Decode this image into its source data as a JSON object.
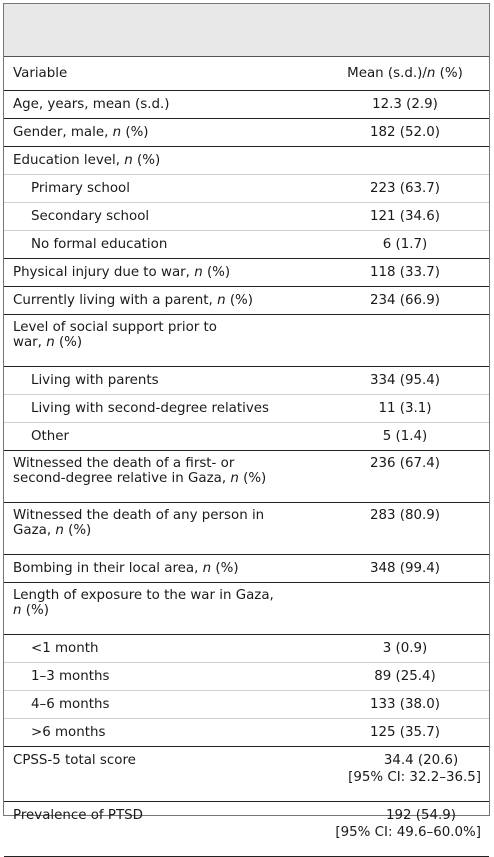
{
  "table": {
    "headers": {
      "variable": "Variable",
      "mean_prefix": "Mean (s.d.)/",
      "mean_n": "n",
      "mean_suffix": " (%)"
    },
    "rows": [
      {
        "label": "Age, years, mean (s.d.)",
        "value": "12.3 (2.9)"
      },
      {
        "label_prefix": "Gender, male, ",
        "n": "n",
        "label_suffix": " (%)",
        "value": "182 (52.0)"
      },
      {
        "label_prefix": "Education level, ",
        "n": "n",
        "label_suffix": " (%)",
        "value": ""
      },
      {
        "label": "Primary school",
        "value": "223 (63.7)"
      },
      {
        "label": "Secondary school",
        "value": "121 (34.6)"
      },
      {
        "label": "No formal education",
        "value": "6 (1.7)"
      },
      {
        "label_prefix": "Physical injury due to war, ",
        "n": "n",
        "label_suffix": " (%)",
        "value": "118 (33.7)"
      },
      {
        "label_prefix": "Currently living with a parent, ",
        "n": "n",
        "label_suffix": " (%)",
        "value": "234 (66.9)"
      },
      {
        "label_line1": "Level of social support prior to",
        "label_prefix": "war, ",
        "n": "n",
        "label_suffix": " (%)",
        "value": ""
      },
      {
        "label": "Living with parents",
        "value": "334 (95.4)"
      },
      {
        "label": "Living with second-degree relatives",
        "value": "11 (3.1)"
      },
      {
        "label": "Other",
        "value": "5 (1.4)"
      },
      {
        "label_line1": "Witnessed the death of a first- or",
        "label_prefix": "second-degree relative in Gaza, ",
        "n": "n",
        "label_suffix": " (%)",
        "value": "236 (67.4)"
      },
      {
        "label_line1": "Witnessed the death of any person in",
        "label_prefix": "Gaza, ",
        "n": "n",
        "label_suffix": " (%)",
        "value": "283 (80.9)"
      },
      {
        "label_prefix": "Bombing in their local area, ",
        "n": "n",
        "label_suffix": " (%)",
        "value": "348 (99.4)"
      },
      {
        "label_line1": "Length of exposure to the war in Gaza,",
        "label_prefix": "",
        "n": "n",
        "label_suffix": " (%)",
        "value": ""
      },
      {
        "label": "<1 month",
        "value": "3 (0.9)"
      },
      {
        "label": "1–3 months",
        "value": "89 (25.4)"
      },
      {
        "label": "4–6 months",
        "value": "133 (38.0)"
      },
      {
        "label": ">6 months",
        "value": "125 (35.7)"
      },
      {
        "label": "CPSS-5 total score",
        "value": "34.4 (20.6)",
        "ci": "[95% CI: 32.2–36.5]"
      },
      {
        "label": "Prevalence of PTSD",
        "value": "192 (54.9)",
        "ci": "[95% CI: 49.6–60.0%]"
      }
    ]
  }
}
